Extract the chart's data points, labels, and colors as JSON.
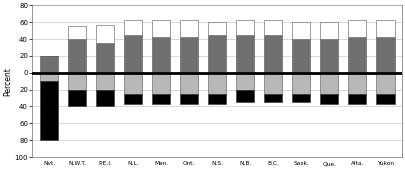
{
  "categories": [
    "Nvt.",
    "N.W.T.",
    "P.E.I.",
    "N.L.",
    "Man.",
    "Ont.",
    "N.S.",
    "N.B.",
    "B.C.",
    "Sask.",
    "Que.",
    "Alta.",
    "Yukon"
  ],
  "above_darkgray": [
    20,
    40,
    35,
    45,
    42,
    42,
    45,
    45,
    45,
    40,
    40,
    42,
    42
  ],
  "above_white": [
    0,
    15,
    22,
    18,
    20,
    20,
    15,
    18,
    18,
    20,
    20,
    20,
    20
  ],
  "below_lightgray": [
    10,
    20,
    20,
    25,
    25,
    25,
    25,
    20,
    25,
    25,
    25,
    25,
    25
  ],
  "below_black": [
    70,
    20,
    20,
    12,
    12,
    12,
    12,
    15,
    10,
    10,
    12,
    12,
    12
  ],
  "color_white": "#ffffff",
  "color_darkgray": "#707070",
  "color_lightgray": "#b8b8b8",
  "color_black": "#000000",
  "ylabel": "Percent",
  "background": "#ffffff",
  "bar_width": 0.65,
  "figsize": [
    4.05,
    1.69
  ],
  "dpi": 100
}
